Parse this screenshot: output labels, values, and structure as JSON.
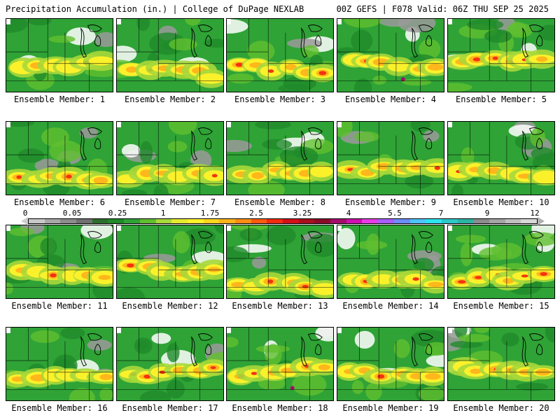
{
  "header": {
    "title": "Precipitation Accumulation (in.) | College of DuPage NEXLAB",
    "run_info": "00Z GEFS | F078 Valid: 06Z THU SEP 25 2025"
  },
  "panels": [
    {
      "label": "Ensemble Member: 1"
    },
    {
      "label": "Ensemble Member: 2"
    },
    {
      "label": "Ensemble Member: 3"
    },
    {
      "label": "Ensemble Member: 4"
    },
    {
      "label": "Ensemble Member: 5"
    },
    {
      "label": "Ensemble Member: 6"
    },
    {
      "label": "Ensemble Member: 7"
    },
    {
      "label": "Ensemble Member: 8"
    },
    {
      "label": "Ensemble Member: 9"
    },
    {
      "label": "Ensemble Member: 10"
    },
    {
      "label": "Ensemble Member: 11"
    },
    {
      "label": "Ensemble Member: 12"
    },
    {
      "label": "Ensemble Member: 13"
    },
    {
      "label": "Ensemble Member: 14"
    },
    {
      "label": "Ensemble Member: 15"
    },
    {
      "label": "Ensemble Member: 16"
    },
    {
      "label": "Ensemble Member: 17"
    },
    {
      "label": "Ensemble Member: 18"
    },
    {
      "label": "Ensemble Member: 19"
    },
    {
      "label": "Ensemble Member: 20"
    }
  ],
  "colorbar": {
    "ticks": [
      "0",
      "0.05",
      "0.25",
      "1",
      "1.75",
      "2.5",
      "3.25",
      "4",
      "5.5",
      "7",
      "9",
      "12"
    ],
    "colors": [
      "#c8c8c8",
      "#a8a8a8",
      "#8c8c8c",
      "#707070",
      "#2c6e2c",
      "#1f8a2a",
      "#2fa336",
      "#60bf30",
      "#a8d83a",
      "#e4ea30",
      "#fff22a",
      "#ffd51e",
      "#ffb31a",
      "#ff8c14",
      "#ff5a10",
      "#f22a10",
      "#d4101a",
      "#a8101c",
      "#8a0c28",
      "#a40c6c",
      "#d010b0",
      "#e83ae6",
      "#a85cff",
      "#6c8cff",
      "#4cc4ff",
      "#2ce4f0",
      "#2cc8c8",
      "#2cb4a4",
      "#8c8c8c",
      "#a4a4a4",
      "#c0c0c0",
      "#d8d8d8"
    ],
    "arrow_left_color": "#cfcfcf",
    "arrow_right_color": "#b0b0b0"
  },
  "map_colors": {
    "green_dark": "#1f8a2a",
    "green": "#2fa336",
    "green_light": "#60bf30",
    "yellow_green": "#a8d83a",
    "yellow": "#fff22a",
    "orange": "#ffb31a",
    "red": "#f22a10",
    "magenta": "#a40c6c",
    "gray": "#9a9a9a",
    "white": "#ffffff",
    "border": "#000000"
  }
}
